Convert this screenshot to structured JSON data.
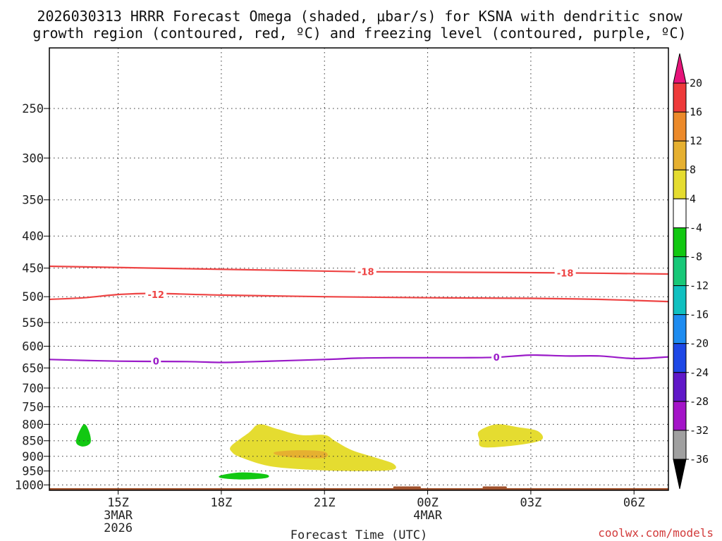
{
  "chart_data": {
    "type": "time-height",
    "title": "2026030313 HRRR Forecast Omega (shaded, μbar/s) for KSNA with dendritic snow growth region (contoured, red, °C) and freezing level (contoured, purple, °C)",
    "title_lines": [
      "2026030313 HRRR Forecast Omega (shaded, μbar/s) for KSNA with dendritic snow",
      "growth region (contoured, red, ºC) and freezing level (contoured, purple, ºC)"
    ],
    "xlabel": "Forecast Time (UTC)",
    "x_forecast_hour_range": [
      0,
      18
    ],
    "x_ticks": [
      {
        "hour": 2,
        "label": "15Z",
        "sub": [
          "3MAR",
          "2026"
        ]
      },
      {
        "hour": 5,
        "label": "18Z",
        "sub": []
      },
      {
        "hour": 8,
        "label": "21Z",
        "sub": []
      },
      {
        "hour": 11,
        "label": "00Z",
        "sub": [
          "4MAR"
        ]
      },
      {
        "hour": 14,
        "label": "03Z",
        "sub": []
      },
      {
        "hour": 17,
        "label": "06Z",
        "sub": []
      }
    ],
    "y_pressure_ticks": [
      250,
      300,
      350,
      400,
      450,
      500,
      550,
      600,
      650,
      700,
      750,
      800,
      850,
      900,
      950,
      1000
    ],
    "colorbar": {
      "levels": [
        20,
        16,
        12,
        8,
        4,
        -4,
        -8,
        -12,
        -16,
        -20,
        -24,
        -28,
        -32,
        -36
      ],
      "colors": [
        "#ee3a3a",
        "#ec8a2a",
        "#e6b030",
        "#e5dc30",
        "#ffffff",
        "#12c812",
        "#18c878",
        "#10c0c0",
        "#1e8cf0",
        "#1e48e6",
        "#6018c8",
        "#a414c8",
        "#a0a0a0"
      ],
      "top_color": "#e6147a",
      "bottom_color": "#000000"
    },
    "contours": [
      {
        "kind": "dendritic",
        "value": -18,
        "label": "-18",
        "color": "#ee4444",
        "points": [
          [
            0,
            447
          ],
          [
            3,
            450
          ],
          [
            6,
            453
          ],
          [
            9,
            456
          ],
          [
            12,
            457
          ],
          [
            15,
            458
          ],
          [
            18,
            460
          ]
        ]
      },
      {
        "kind": "dendritic",
        "value": -12,
        "label": "-12",
        "color": "#ee4444",
        "points": [
          [
            0,
            505
          ],
          [
            1,
            502
          ],
          [
            2,
            496
          ],
          [
            3,
            494
          ],
          [
            5,
            497
          ],
          [
            8,
            500
          ],
          [
            11,
            502
          ],
          [
            14,
            503
          ],
          [
            16,
            505
          ],
          [
            18,
            509
          ]
        ]
      },
      {
        "kind": "freezing",
        "value": 0,
        "label": "0",
        "color": "#9a1ac8",
        "points": [
          [
            0,
            630
          ],
          [
            2,
            634
          ],
          [
            4,
            635
          ],
          [
            5,
            637
          ],
          [
            6,
            635
          ],
          [
            8,
            630
          ],
          [
            9,
            627
          ],
          [
            10,
            626
          ],
          [
            12,
            626
          ],
          [
            13,
            625
          ],
          [
            14,
            620
          ],
          [
            15,
            622
          ],
          [
            16,
            622
          ],
          [
            17,
            628
          ],
          [
            18,
            624
          ]
        ]
      }
    ],
    "contour_labels": [
      {
        "text": "-18",
        "hour": 9.2,
        "p": 456,
        "color": "#ee4444"
      },
      {
        "text": "-18",
        "hour": 15.0,
        "p": 458,
        "color": "#ee4444"
      },
      {
        "text": "-12",
        "hour": 3.1,
        "p": 496,
        "color": "#ee4444"
      },
      {
        "text": "0",
        "hour": 3.1,
        "p": 634,
        "color": "#9a1ac8"
      },
      {
        "text": "0",
        "hour": 13.0,
        "p": 625,
        "color": "#9a1ac8"
      }
    ],
    "shaded_regions": [
      {
        "omega_range": [
          4,
          8
        ],
        "color": "#e5dc30",
        "points": [
          [
            5.3,
            865
          ],
          [
            5.8,
            825
          ],
          [
            6.1,
            800
          ],
          [
            6.6,
            813
          ],
          [
            7.3,
            832
          ],
          [
            8.0,
            832
          ],
          [
            8.3,
            850
          ],
          [
            8.8,
            880
          ],
          [
            9.5,
            905
          ],
          [
            10.0,
            925
          ],
          [
            10.0,
            945
          ],
          [
            9.2,
            950
          ],
          [
            8.0,
            948
          ],
          [
            6.5,
            935
          ],
          [
            5.6,
            905
          ],
          [
            5.3,
            885
          ]
        ]
      },
      {
        "omega_range": [
          8,
          12
        ],
        "color": "#e6b030",
        "points": [
          [
            6.6,
            885
          ],
          [
            7.3,
            880
          ],
          [
            8.0,
            885
          ],
          [
            8.0,
            905
          ],
          [
            7.2,
            905
          ],
          [
            6.6,
            895
          ]
        ]
      },
      {
        "omega_range": [
          4,
          8
        ],
        "color": "#e5dc30",
        "points": [
          [
            12.5,
            820
          ],
          [
            13.0,
            800
          ],
          [
            13.6,
            808
          ],
          [
            14.2,
            820
          ],
          [
            14.3,
            848
          ],
          [
            13.5,
            865
          ],
          [
            12.6,
            870
          ],
          [
            12.5,
            845
          ]
        ]
      },
      {
        "omega_range": [
          -8,
          -4
        ],
        "color": "#12c812",
        "points": [
          [
            0.8,
            840
          ],
          [
            1.0,
            800
          ],
          [
            1.15,
            820
          ],
          [
            1.2,
            855
          ],
          [
            1.0,
            868
          ],
          [
            0.8,
            860
          ]
        ]
      },
      {
        "omega_range": [
          -8,
          -4
        ],
        "color": "#12c812",
        "points": [
          [
            5.0,
            965
          ],
          [
            5.6,
            955
          ],
          [
            6.3,
            962
          ],
          [
            6.3,
            975
          ],
          [
            5.6,
            980
          ],
          [
            5.0,
            975
          ]
        ]
      }
    ],
    "surface_color": "#a0522d",
    "surface_bumps": [
      {
        "hour_range": [
          10.0,
          10.8
        ],
        "p": 1012
      },
      {
        "hour_range": [
          12.6,
          13.3
        ],
        "p": 1011
      }
    ]
  },
  "credit": "coolwx.com/models"
}
